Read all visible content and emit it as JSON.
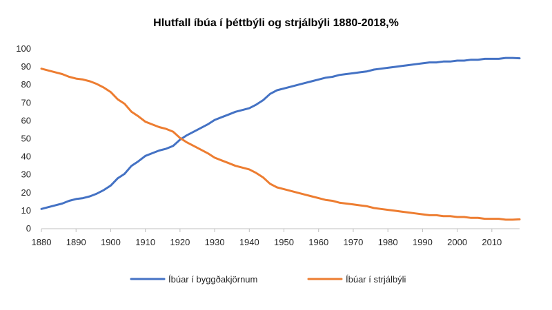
{
  "chart_data": {
    "type": "line",
    "title": "Hlutfall íbúa í þéttbýli og strjálbýli 1880-2018,%",
    "xlabel": "",
    "ylabel": "",
    "xlim": [
      1880,
      2018
    ],
    "ylim": [
      0,
      100
    ],
    "x_ticks": [
      "1880",
      "1890",
      "1900",
      "1910",
      "1920",
      "1930",
      "1940",
      "1950",
      "1960",
      "1970",
      "1980",
      "1990",
      "2000",
      "2010"
    ],
    "y_ticks": [
      "0",
      "10",
      "20",
      "30",
      "40",
      "50",
      "60",
      "70",
      "80",
      "90",
      "100"
    ],
    "grid": false,
    "legend_position": "bottom",
    "series": [
      {
        "name": "Íbúar í byggðakjörnum",
        "color": "#4472c4",
        "x": [
          1880,
          1882,
          1884,
          1886,
          1888,
          1890,
          1892,
          1894,
          1896,
          1898,
          1900,
          1902,
          1904,
          1906,
          1908,
          1910,
          1912,
          1914,
          1916,
          1918,
          1920,
          1922,
          1924,
          1926,
          1928,
          1930,
          1932,
          1934,
          1936,
          1938,
          1940,
          1942,
          1944,
          1946,
          1948,
          1950,
          1952,
          1954,
          1956,
          1958,
          1960,
          1962,
          1964,
          1966,
          1968,
          1970,
          1972,
          1974,
          1976,
          1978,
          1980,
          1982,
          1984,
          1986,
          1988,
          1990,
          1992,
          1994,
          1996,
          1998,
          2000,
          2002,
          2004,
          2006,
          2008,
          2010,
          2012,
          2014,
          2016,
          2018
        ],
        "values": [
          11.0,
          12.0,
          13.0,
          14.0,
          15.5,
          16.5,
          17.0,
          18.0,
          19.5,
          21.5,
          24.0,
          28.0,
          30.5,
          35.0,
          37.5,
          40.5,
          42.0,
          43.5,
          44.5,
          46.0,
          49.5,
          52.0,
          54.0,
          56.0,
          58.0,
          60.5,
          62.0,
          63.5,
          65.0,
          66.0,
          67.0,
          69.0,
          71.5,
          75.0,
          77.0,
          78.0,
          79.0,
          80.0,
          81.0,
          82.0,
          83.0,
          84.0,
          84.5,
          85.5,
          86.0,
          86.5,
          87.0,
          87.5,
          88.5,
          89.0,
          89.5,
          90.0,
          90.5,
          91.0,
          91.5,
          92.0,
          92.5,
          92.5,
          93.0,
          93.0,
          93.5,
          93.5,
          94.0,
          94.0,
          94.5,
          94.5,
          94.5,
          95.0,
          95.0,
          94.8
        ]
      },
      {
        "name": "Íbúar í strjálbýli",
        "color": "#ed7d31",
        "x": [
          1880,
          1882,
          1884,
          1886,
          1888,
          1890,
          1892,
          1894,
          1896,
          1898,
          1900,
          1902,
          1904,
          1906,
          1908,
          1910,
          1912,
          1914,
          1916,
          1918,
          1920,
          1922,
          1924,
          1926,
          1928,
          1930,
          1932,
          1934,
          1936,
          1938,
          1940,
          1942,
          1944,
          1946,
          1948,
          1950,
          1952,
          1954,
          1956,
          1958,
          1960,
          1962,
          1964,
          1966,
          1968,
          1970,
          1972,
          1974,
          1976,
          1978,
          1980,
          1982,
          1984,
          1986,
          1988,
          1990,
          1992,
          1994,
          1996,
          1998,
          2000,
          2002,
          2004,
          2006,
          2008,
          2010,
          2012,
          2014,
          2016,
          2018
        ],
        "values": [
          89.0,
          88.0,
          87.0,
          86.0,
          84.5,
          83.5,
          83.0,
          82.0,
          80.5,
          78.5,
          76.0,
          72.0,
          69.5,
          65.0,
          62.5,
          59.5,
          58.0,
          56.5,
          55.5,
          54.0,
          50.5,
          48.0,
          46.0,
          44.0,
          42.0,
          39.5,
          38.0,
          36.5,
          35.0,
          34.0,
          33.0,
          31.0,
          28.5,
          25.0,
          23.0,
          22.0,
          21.0,
          20.0,
          19.0,
          18.0,
          17.0,
          16.0,
          15.5,
          14.5,
          14.0,
          13.5,
          13.0,
          12.5,
          11.5,
          11.0,
          10.5,
          10.0,
          9.5,
          9.0,
          8.5,
          8.0,
          7.5,
          7.5,
          7.0,
          7.0,
          6.5,
          6.5,
          6.0,
          6.0,
          5.5,
          5.5,
          5.5,
          5.0,
          5.0,
          5.2
        ]
      }
    ]
  }
}
